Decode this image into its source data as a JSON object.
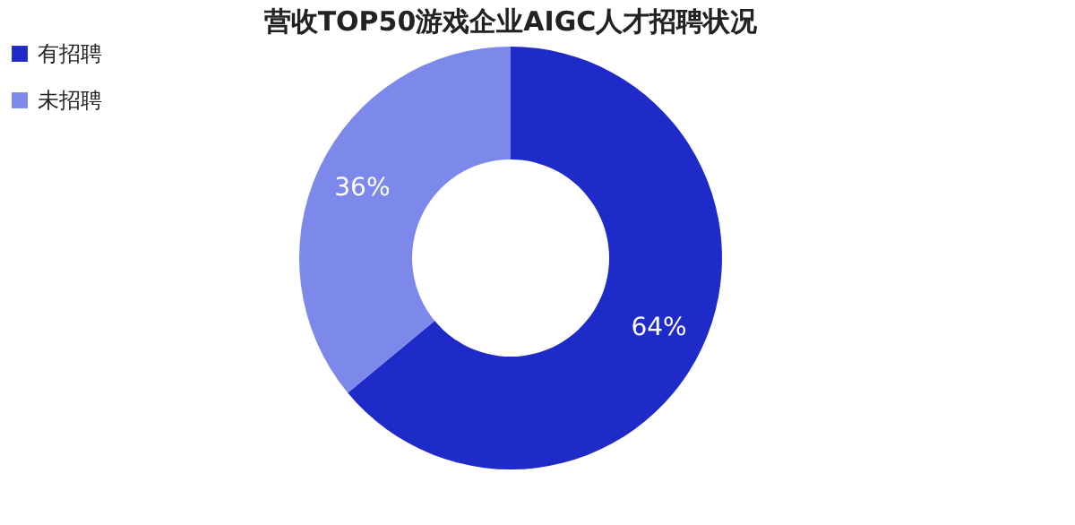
{
  "chart_data": {
    "type": "donut",
    "title": "营收TOP50游戏企业AIGC人才招聘状况",
    "categories": [
      "有招聘",
      "未招聘"
    ],
    "values": [
      64,
      36
    ],
    "colors": [
      "#1f2bc9",
      "#7d89ea"
    ],
    "value_labels": [
      "64%",
      "36%"
    ],
    "legend": "left"
  }
}
